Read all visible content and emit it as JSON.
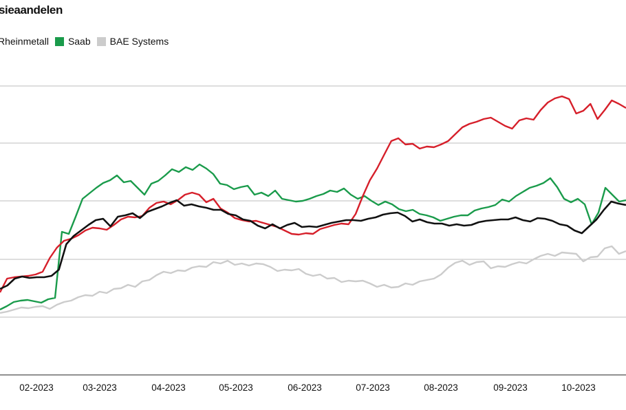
{
  "title": "sieaandelen",
  "legend": [
    {
      "name": "Rheinmetall",
      "color": "#d61f2a"
    },
    {
      "name": "Saab",
      "color": "#1a9b4b"
    },
    {
      "name": "BAE Systems",
      "color": "#cccccc"
    }
  ],
  "chart_data": {
    "type": "line",
    "xlabel": "",
    "ylabel": "",
    "x_ticks": [
      "02-2023",
      "03-2023",
      "04-2023",
      "05-2023",
      "06-2023",
      "07-2023",
      "08-2023",
      "09-2023",
      "10-2023"
    ],
    "grid": "horizontal",
    "legend_position": "top-left",
    "series": [
      {
        "color": "#cccccc",
        "values": [
          90,
          92,
          95,
          98,
          97,
          99,
          100,
          96,
          102,
          106,
          108,
          113,
          116,
          115,
          121,
          119,
          125,
          126,
          131,
          128,
          136,
          138,
          145,
          150,
          148,
          152,
          151,
          156,
          158,
          157,
          164,
          162,
          166,
          160,
          162,
          159,
          162,
          161,
          157,
          151,
          153,
          152,
          154,
          147,
          144,
          146,
          140,
          141,
          135,
          137,
          136,
          137,
          133,
          128,
          131,
          127,
          128,
          133,
          131,
          136,
          138,
          140,
          146,
          156,
          163,
          166,
          160,
          164,
          165,
          155,
          158,
          157,
          161,
          164,
          162,
          168,
          173,
          176,
          173,
          178,
          177,
          176,
          165,
          171,
          172,
          184,
          187,
          176,
          180
        ]
      },
      {
        "color": "#1a9b4b",
        "values": [
          95,
          100,
          106,
          108,
          109,
          107,
          105,
          110,
          112,
          208,
          205,
          230,
          256,
          264,
          272,
          279,
          283,
          290,
          280,
          282,
          272,
          262,
          278,
          282,
          290,
          299,
          295,
          302,
          298,
          306,
          300,
          292,
          278,
          276,
          270,
          273,
          275,
          262,
          265,
          260,
          268,
          256,
          254,
          252,
          253,
          256,
          260,
          263,
          268,
          266,
          271,
          262,
          256,
          260,
          253,
          247,
          252,
          248,
          241,
          238,
          240,
          234,
          232,
          229,
          224,
          227,
          230,
          232,
          232,
          239,
          242,
          244,
          247,
          255,
          252,
          260,
          266,
          272,
          275,
          279,
          286,
          273,
          256,
          251,
          256,
          248,
          219,
          236,
          272,
          262,
          252,
          254
        ]
      },
      {
        "color": "#d61f2a",
        "values": [
          120,
          140,
          142,
          143,
          144,
          146,
          150,
          170,
          185,
          195,
          198,
          203,
          210,
          214,
          213,
          211,
          218,
          226,
          230,
          229,
          231,
          243,
          250,
          252,
          248,
          254,
          262,
          265,
          262,
          251,
          256,
          242,
          236,
          228,
          225,
          223,
          224,
          221,
          218,
          215,
          210,
          205,
          204,
          206,
          205,
          212,
          215,
          218,
          220,
          219,
          234,
          260,
          283,
          300,
          320,
          340,
          344,
          335,
          336,
          329,
          332,
          331,
          335,
          340,
          350,
          360,
          365,
          368,
          372,
          374,
          368,
          362,
          358,
          370,
          373,
          371,
          385,
          396,
          402,
          405,
          401,
          380,
          384,
          394,
          372,
          385,
          399,
          394,
          388
        ]
      },
      {
        "color": "#111111",
        "values": [
          125,
          130,
          140,
          143,
          141,
          142,
          142,
          144,
          153,
          190,
          202,
          210,
          218,
          225,
          227,
          216,
          230,
          232,
          235,
          228,
          237,
          241,
          245,
          250,
          254,
          246,
          248,
          245,
          243,
          240,
          240,
          234,
          232,
          226,
          224,
          217,
          213,
          219,
          213,
          218,
          221,
          215,
          216,
          215,
          218,
          221,
          223,
          225,
          225,
          224,
          227,
          229,
          233,
          235,
          236,
          231,
          223,
          226,
          222,
          220,
          220,
          217,
          219,
          217,
          218,
          222,
          224,
          225,
          226,
          226,
          229,
          225,
          223,
          228,
          227,
          224,
          219,
          217,
          210,
          206,
          216,
          226,
          240,
          252,
          249,
          247
        ]
      }
    ]
  }
}
